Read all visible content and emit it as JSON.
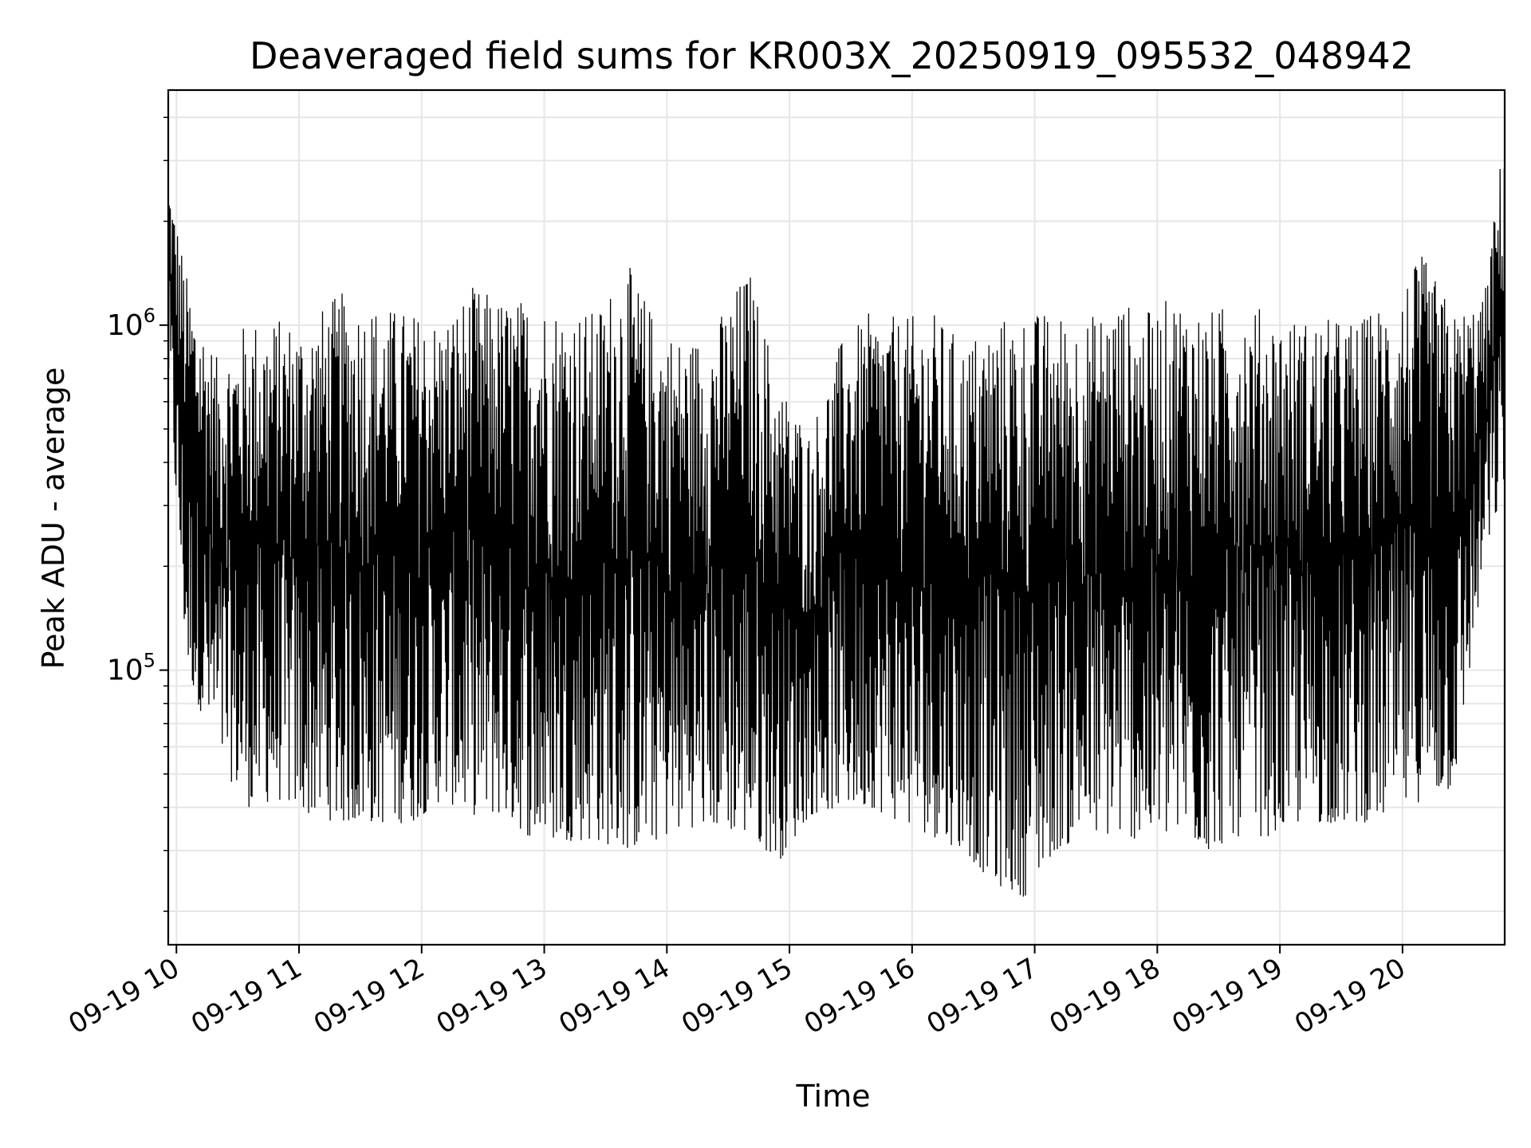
{
  "chart_data": {
    "type": "line",
    "title": "Deaveraged field sums for KR003X_20250919_095532_048942",
    "xlabel": "Time",
    "ylabel": "Peak ADU - average",
    "yscale": "log",
    "ylim": [
      16000,
      4800000
    ],
    "xlim": [
      "2025-09-19 09:56",
      "2025-09-19 20:50"
    ],
    "grid": true,
    "line_color": "#000000",
    "x_ticks": [
      "09-19 10",
      "09-19 11",
      "09-19 12",
      "09-19 13",
      "09-19 14",
      "09-19 15",
      "09-19 16",
      "09-19 17",
      "09-19 18",
      "09-19 19",
      "09-19 20"
    ],
    "y_ticks": [
      {
        "value": 100000,
        "base": "10",
        "exp": "5"
      },
      {
        "value": 1000000,
        "base": "10",
        "exp": "6"
      }
    ],
    "series": [
      {
        "x": [
          "2025-09-19 09:56",
          "2025-09-19 10:05",
          "2025-09-19 10:20",
          "2025-09-19 10:35",
          "2025-09-19 10:50",
          "2025-09-19 11:05",
          "2025-09-19 11:20",
          "2025-09-19 11:40",
          "2025-09-19 11:55",
          "2025-09-19 12:10",
          "2025-09-19 12:25",
          "2025-09-19 12:40",
          "2025-09-19 12:55",
          "2025-09-19 13:10",
          "2025-09-19 13:25",
          "2025-09-19 13:40",
          "2025-09-19 13:55",
          "2025-09-19 14:10",
          "2025-09-19 14:25",
          "2025-09-19 14:40",
          "2025-09-19 14:55",
          "2025-09-19 15:10",
          "2025-09-19 15:25",
          "2025-09-19 15:40",
          "2025-09-19 15:55",
          "2025-09-19 16:10",
          "2025-09-19 16:25",
          "2025-09-19 16:40",
          "2025-09-19 16:55",
          "2025-09-19 17:10",
          "2025-09-19 17:25",
          "2025-09-19 17:40",
          "2025-09-19 17:55",
          "2025-09-19 18:10",
          "2025-09-19 18:25",
          "2025-09-19 18:40",
          "2025-09-19 18:55",
          "2025-09-19 19:10",
          "2025-09-19 19:25",
          "2025-09-19 19:40",
          "2025-09-19 19:55",
          "2025-09-19 20:10",
          "2025-09-19 20:25",
          "2025-09-19 20:40",
          "2025-09-19 20:50"
        ],
        "upper": [
          2800000,
          1400000,
          800000,
          1050000,
          1050000,
          1050000,
          1250000,
          1150000,
          1100000,
          1050000,
          1300000,
          1200000,
          1200000,
          1150000,
          1100000,
          1550000,
          1050000,
          900000,
          1050000,
          1500000,
          700000,
          500000,
          900000,
          1100000,
          1050000,
          1100000,
          900000,
          1050000,
          1100000,
          1100000,
          1050000,
          1200000,
          1100000,
          1250000,
          1100000,
          1200000,
          1100000,
          1050000,
          1050000,
          1050000,
          1250000,
          1600000,
          1100000,
          1200000,
          3800000
        ],
        "lower": [
          700000,
          100000,
          55000,
          40000,
          42000,
          38000,
          36000,
          36000,
          36000,
          42000,
          38000,
          38000,
          32000,
          32000,
          32000,
          30000,
          32000,
          35000,
          35000,
          33000,
          28000,
          38000,
          40000,
          40000,
          36000,
          33000,
          30000,
          24000,
          22000,
          30000,
          33000,
          33000,
          32000,
          33000,
          30000,
          33000,
          33000,
          36000,
          36000,
          36000,
          38000,
          42000,
          45000,
          200000,
          350000
        ]
      }
    ]
  }
}
